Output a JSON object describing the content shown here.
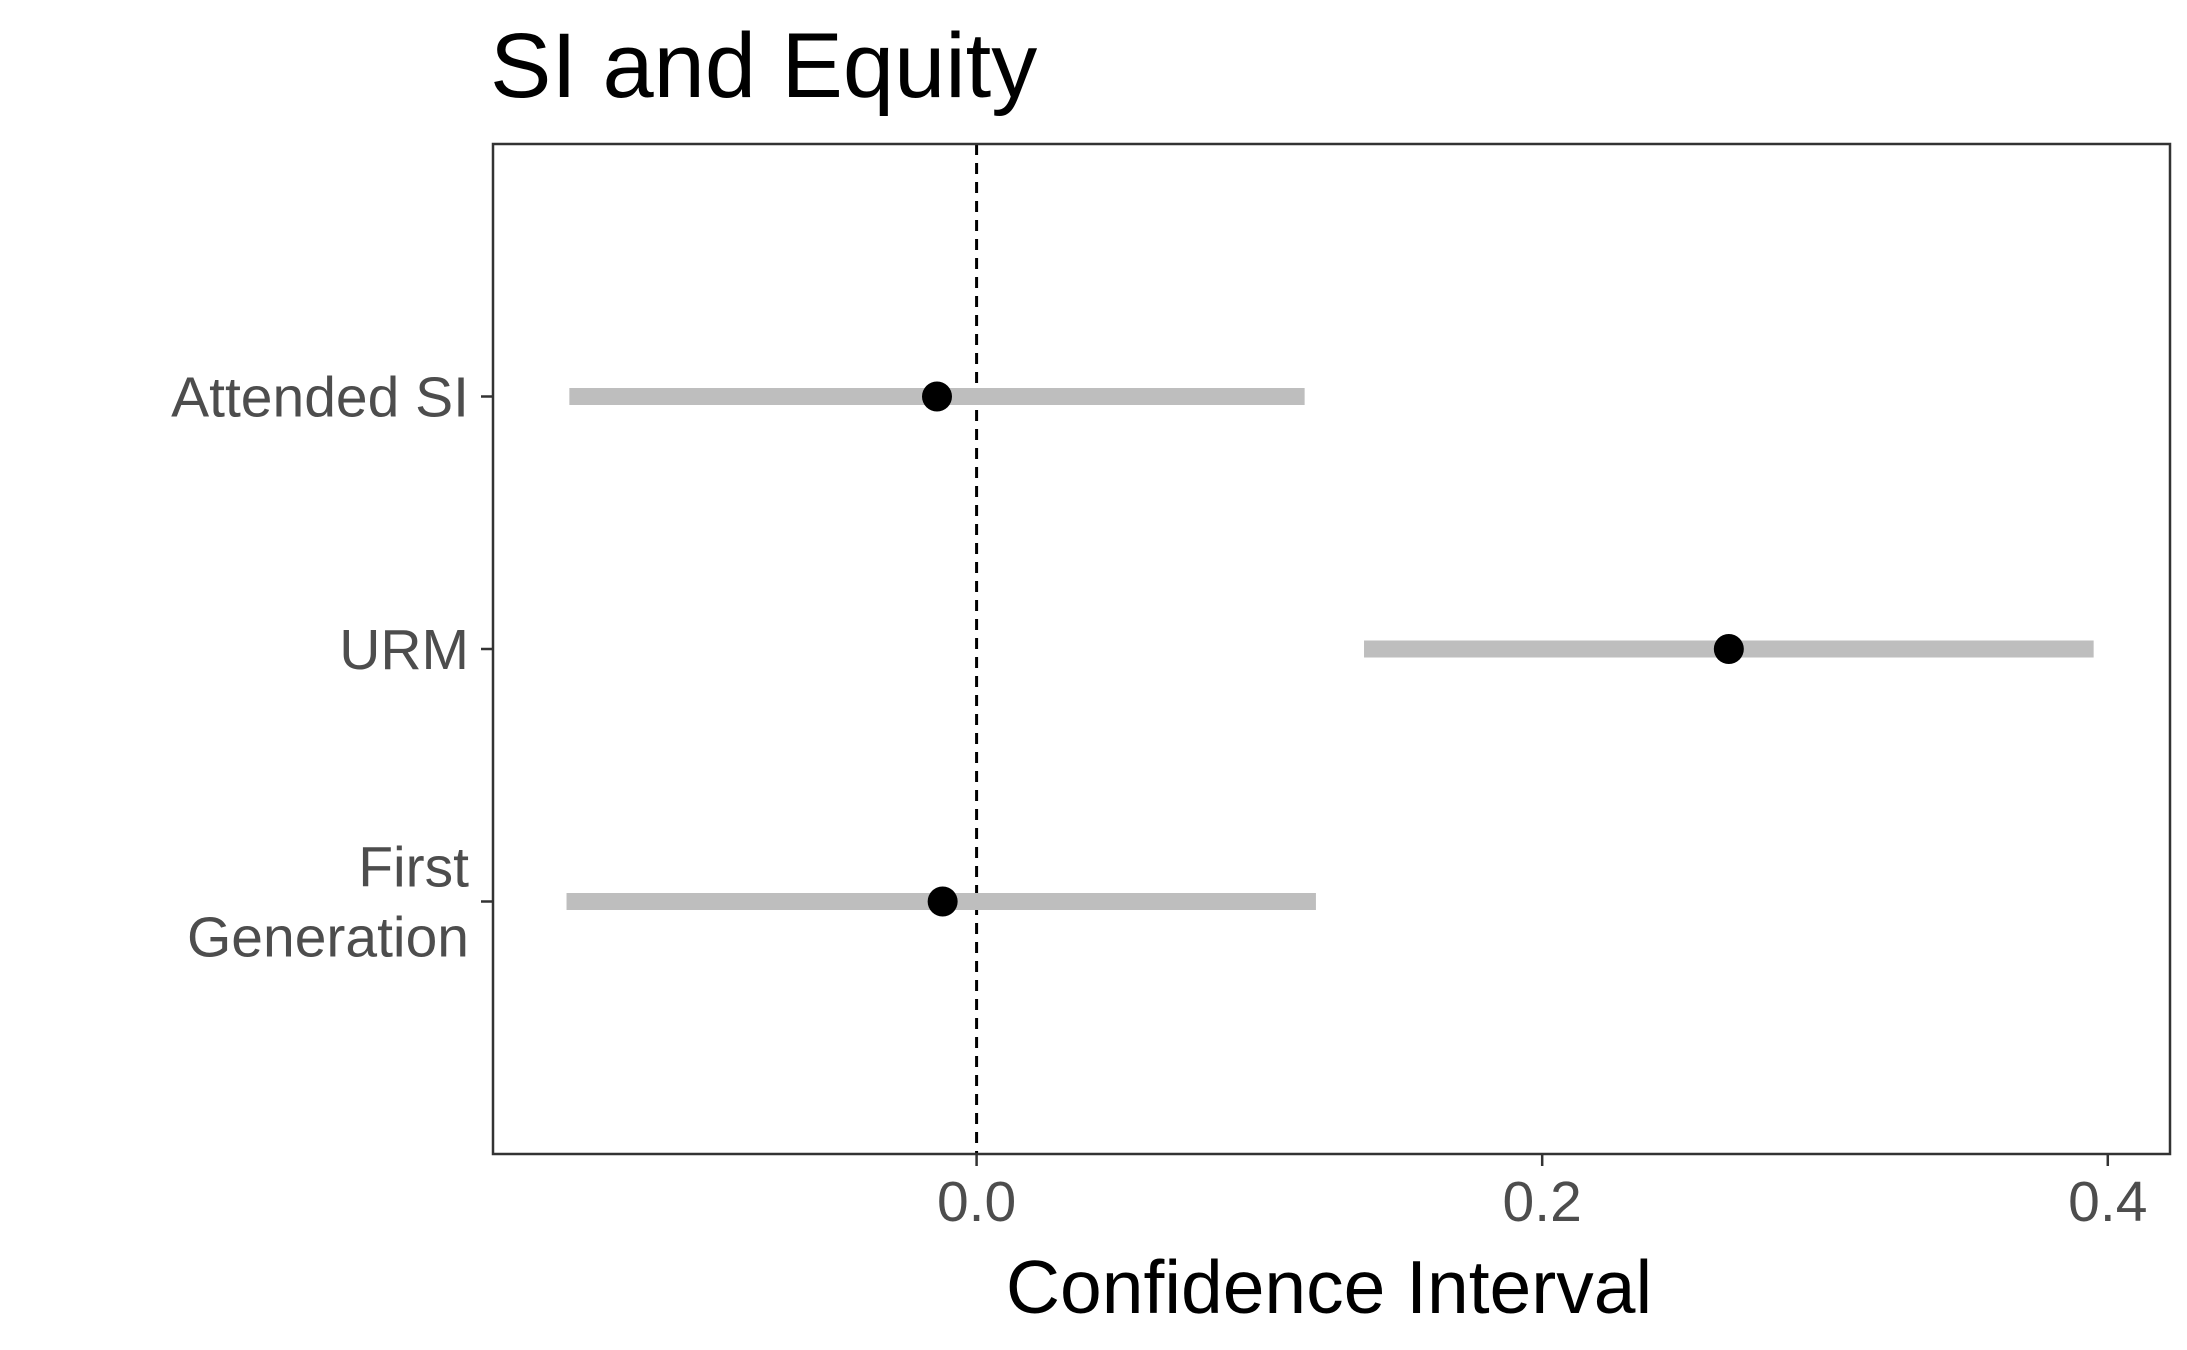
{
  "chart_data": {
    "type": "dot-and-interval",
    "title": "SI and Equity",
    "xlabel": "Confidence Interval",
    "ylabel": "",
    "xlim": [
      -0.171,
      0.422
    ],
    "x_ticks": [
      0.0,
      0.2,
      0.4
    ],
    "x_tick_labels": [
      "0.0",
      "0.2",
      "0.4"
    ],
    "reference_line": {
      "x": 0,
      "style": "dashed",
      "color": "#000000"
    },
    "grid": false,
    "legend": "none",
    "colors": {
      "point": "#000000",
      "interval": "#bebebe",
      "frame": "#333333",
      "tick_label": "#4d4d4d"
    },
    "categories": [
      {
        "label_lines": [
          "Attended SI"
        ],
        "estimate": -0.014,
        "lower": -0.144,
        "upper": 0.116
      },
      {
        "label_lines": [
          "URM"
        ],
        "estimate": 0.266,
        "lower": 0.137,
        "upper": 0.395
      },
      {
        "label_lines": [
          "First",
          "Generation"
        ],
        "estimate": -0.012,
        "lower": -0.145,
        "upper": 0.12
      }
    ]
  }
}
